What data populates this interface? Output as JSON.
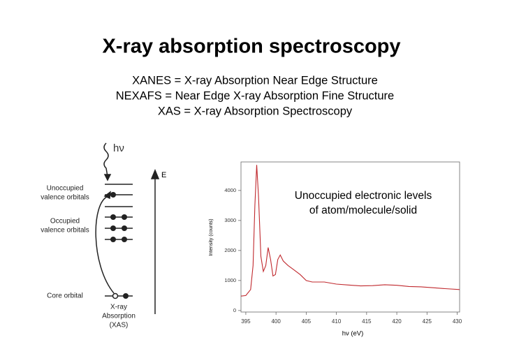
{
  "slide": {
    "title": "X-ray absorption spectroscopy",
    "definitions": [
      "XANES = X-ray Absorption Near Edge Structure",
      "NEXAFS = Near Edge X-ray Absorption Fine Structure",
      "XAS = X-ray Absorption Spectroscopy"
    ]
  },
  "diagram": {
    "photon": "hν",
    "energy": "E",
    "unoccupied": [
      "Unoccupied",
      "valence orbitals"
    ],
    "occupied": [
      "Occupied",
      "valence orbitals"
    ],
    "core": "Core orbital",
    "process": [
      "X-ray",
      "Absorption",
      "(XAS)"
    ]
  },
  "chart_data": {
    "type": "line",
    "annotation": [
      "Unoccupied electronic levels",
      "of atom/molecule/solid"
    ],
    "xlabel": "hν (eV)",
    "ylabel": "Intensity (counts)",
    "color": "#c0282d",
    "x": [
      394.2,
      395,
      395.8,
      396.2,
      396.5,
      396.8,
      397.1,
      397.5,
      397.9,
      398.3,
      398.7,
      399.1,
      399.5,
      399.9,
      400.3,
      400.7,
      401.2,
      402,
      403,
      404,
      405,
      406,
      408,
      410,
      412,
      414,
      416,
      418,
      420,
      422,
      424,
      426,
      428,
      430.4
    ],
    "values": [
      480,
      500,
      700,
      1500,
      3500,
      4850,
      3800,
      1800,
      1300,
      1500,
      2100,
      1700,
      1150,
      1200,
      1700,
      1850,
      1650,
      1500,
      1350,
      1200,
      1000,
      950,
      950,
      880,
      850,
      820,
      830,
      860,
      840,
      800,
      790,
      760,
      730,
      700
    ],
    "xlim": [
      394.2,
      430.4
    ],
    "ylim": [
      -50,
      4950
    ],
    "xticks": [
      395,
      400,
      405,
      410,
      415,
      420,
      425,
      430
    ],
    "yticks": [
      0,
      1000,
      2000,
      3000,
      4000
    ]
  }
}
